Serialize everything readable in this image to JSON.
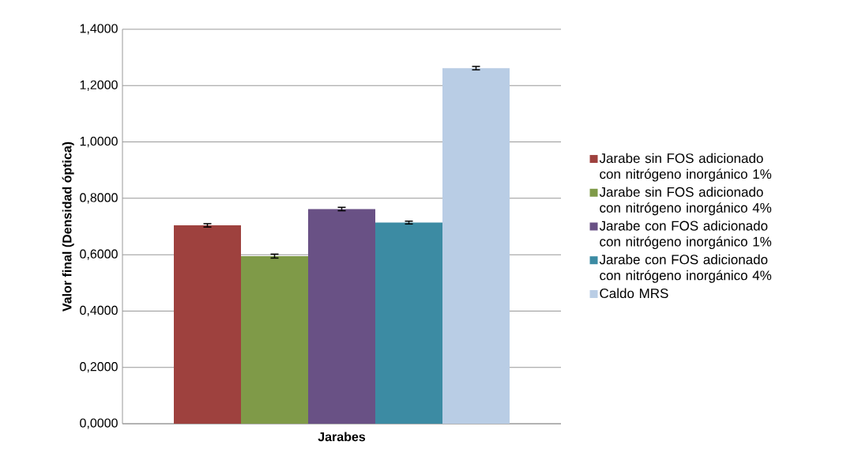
{
  "chart_data": {
    "type": "bar",
    "categories": [
      null
    ],
    "xlabel": "Jarabes",
    "ylabel": "Valor final (Densidad óptica)",
    "ylim": [
      0,
      1.4
    ],
    "yticks": [
      {
        "value": 0,
        "label": "0,0000"
      },
      {
        "value": 0.2,
        "label": "0,2000"
      },
      {
        "value": 0.4,
        "label": "0,4000"
      },
      {
        "value": 0.6,
        "label": "0,6000"
      },
      {
        "value": 0.8,
        "label": "0,8000"
      },
      {
        "value": 1.0,
        "label": "1,0000"
      },
      {
        "value": 1.2,
        "label": "1,2000"
      },
      {
        "value": 1.4,
        "label": "1,4000"
      }
    ],
    "grid": "y",
    "legend": "right",
    "series": [
      {
        "name": "Jarabe sin FOS adicionado con nitrógeno inorgánico 1%",
        "color": "#9e413e",
        "values": [
          0.704
        ],
        "errors": [
          0.006
        ]
      },
      {
        "name": "Jarabe sin FOS adicionado con nitrógeno inorgánico 4%",
        "color": "#7f9a48",
        "values": [
          0.595
        ],
        "errors": [
          0.007
        ]
      },
      {
        "name": "Jarabe con FOS adicionado con nitrógeno inorgánico 1%",
        "color": "#695185",
        "values": [
          0.762
        ],
        "errors": [
          0.006
        ]
      },
      {
        "name": "Jarabe con FOS adicionado con nitrógeno inorgánico 4%",
        "color": "#3c8ba3",
        "values": [
          0.714
        ],
        "errors": [
          0.005
        ]
      },
      {
        "name": "Caldo MRS",
        "color": "#b9cde5",
        "values": [
          1.262
        ],
        "errors": [
          0.006
        ]
      }
    ]
  }
}
